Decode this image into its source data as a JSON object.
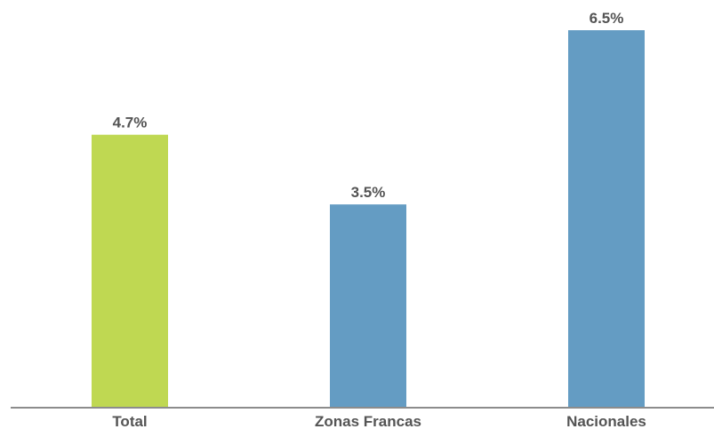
{
  "chart_data": {
    "type": "bar",
    "categories": [
      "Total",
      "Zonas Francas",
      "Nacionales"
    ],
    "values": [
      4.7,
      3.5,
      6.5
    ],
    "value_labels": [
      "4.7%",
      "3.5%",
      "6.5%"
    ],
    "colors": [
      "#BFD852",
      "#649CC3",
      "#649CC3"
    ],
    "title": "",
    "xlabel": "",
    "ylabel": "",
    "ylim": [
      0,
      6.5
    ],
    "grid": false,
    "legend": "none"
  }
}
